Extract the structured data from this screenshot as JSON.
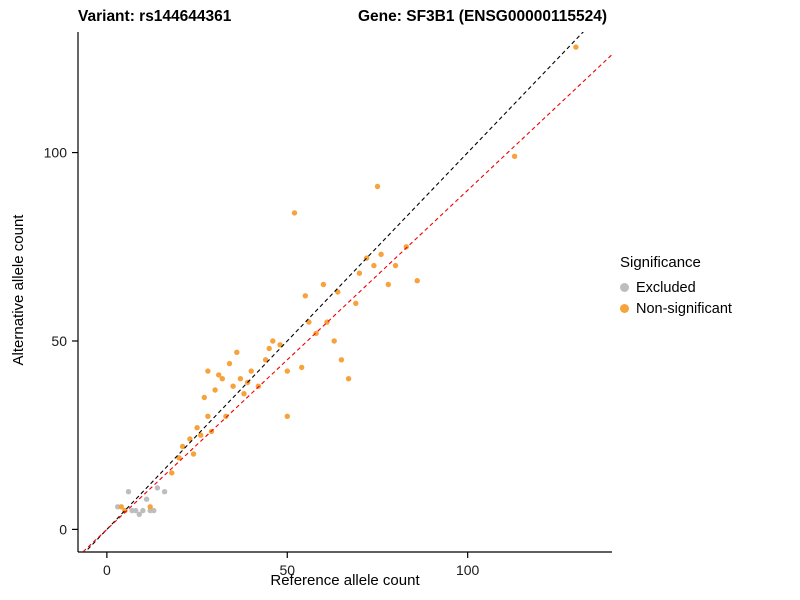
{
  "header": {
    "title_left": "Variant: rs144644361",
    "title_right": "Gene: SF3B1 (ENSG00000115524)"
  },
  "chart_data": {
    "type": "scatter",
    "title": "Variant: rs144644361  |  Gene: SF3B1 (ENSG00000115524)",
    "xlabel": "Reference allele count",
    "ylabel": "Alternative allele count",
    "xlim": [
      -8,
      140
    ],
    "ylim": [
      -6,
      132
    ],
    "xticks": [
      0,
      50,
      100
    ],
    "yticks": [
      0,
      50,
      100
    ],
    "grid": false,
    "legend": {
      "title": "Significance",
      "position": "right",
      "entries": [
        {
          "label": "Excluded",
          "color": "#BDBDBD"
        },
        {
          "label": "Non-significant",
          "color": "#F7A23B"
        }
      ]
    },
    "series": [
      {
        "name": "Excluded",
        "color": "#BDBDBD",
        "points": [
          [
            3,
            6
          ],
          [
            5,
            5
          ],
          [
            6,
            10
          ],
          [
            7,
            5
          ],
          [
            8,
            5
          ],
          [
            9,
            4
          ],
          [
            10,
            5
          ],
          [
            11,
            8
          ],
          [
            12,
            5
          ],
          [
            13,
            5
          ],
          [
            14,
            11
          ],
          [
            16,
            10
          ]
        ]
      },
      {
        "name": "Non-significant",
        "color": "#F7A23B",
        "points": [
          [
            4,
            6
          ],
          [
            5,
            5
          ],
          [
            12,
            6
          ],
          [
            18,
            15
          ],
          [
            20,
            19
          ],
          [
            21,
            22
          ],
          [
            23,
            24
          ],
          [
            24,
            20
          ],
          [
            25,
            27
          ],
          [
            26,
            25
          ],
          [
            27,
            35
          ],
          [
            28,
            30
          ],
          [
            28,
            42
          ],
          [
            29,
            26
          ],
          [
            30,
            37
          ],
          [
            31,
            41
          ],
          [
            32,
            40
          ],
          [
            33,
            30
          ],
          [
            34,
            44
          ],
          [
            35,
            38
          ],
          [
            36,
            47
          ],
          [
            37,
            40
          ],
          [
            38,
            36
          ],
          [
            39,
            39
          ],
          [
            40,
            42
          ],
          [
            42,
            38
          ],
          [
            44,
            45
          ],
          [
            45,
            48
          ],
          [
            46,
            50
          ],
          [
            48,
            49
          ],
          [
            50,
            42
          ],
          [
            50,
            30
          ],
          [
            52,
            84
          ],
          [
            54,
            43
          ],
          [
            55,
            62
          ],
          [
            56,
            55
          ],
          [
            58,
            52
          ],
          [
            60,
            65
          ],
          [
            61,
            55
          ],
          [
            63,
            50
          ],
          [
            64,
            63
          ],
          [
            65,
            45
          ],
          [
            67,
            40
          ],
          [
            69,
            60
          ],
          [
            70,
            68
          ],
          [
            72,
            72
          ],
          [
            74,
            70
          ],
          [
            75,
            91
          ],
          [
            76,
            73
          ],
          [
            78,
            65
          ],
          [
            80,
            70
          ],
          [
            83,
            75
          ],
          [
            86,
            66
          ],
          [
            113,
            99
          ],
          [
            130,
            128
          ]
        ]
      }
    ],
    "lines": [
      {
        "name": "identity-line",
        "slope": 1.0,
        "intercept": 0,
        "color": "#000000",
        "dash": true
      },
      {
        "name": "fit-line",
        "slope": 0.9,
        "intercept": 0,
        "color": "#EE0000",
        "dash": true
      }
    ]
  }
}
